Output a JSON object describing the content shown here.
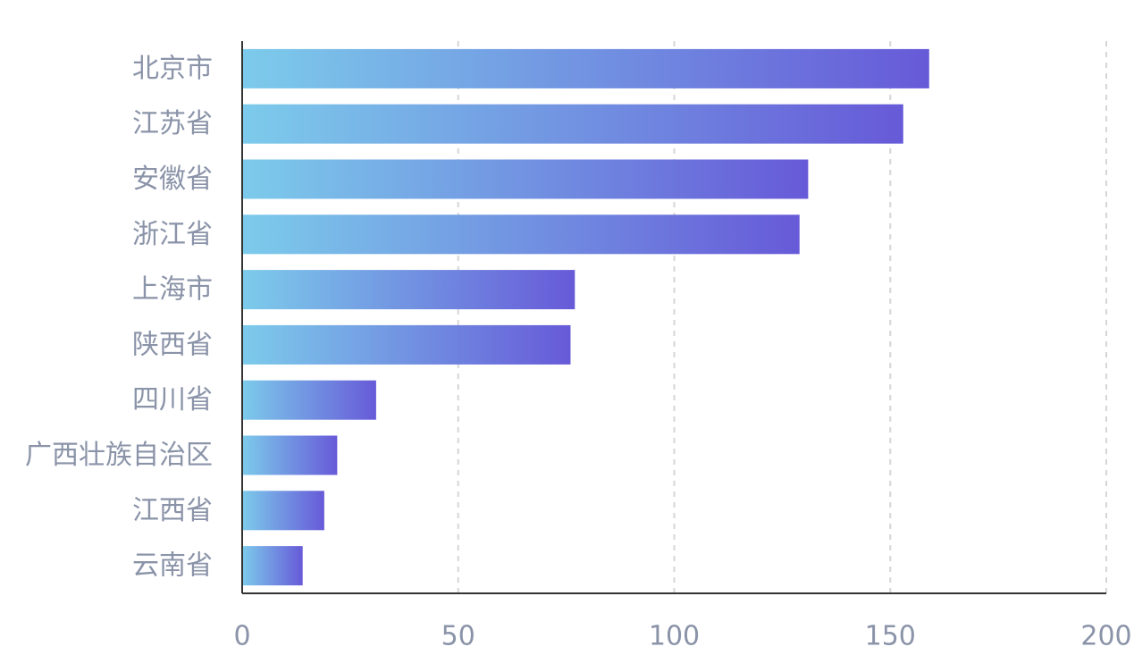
{
  "chart_data": {
    "type": "bar",
    "orientation": "horizontal",
    "categories": [
      "北京市",
      "江苏省",
      "安徽省",
      "浙江省",
      "上海市",
      "陕西省",
      "四川省",
      "广西壮族自治区",
      "江西省",
      "云南省"
    ],
    "values": [
      159,
      153,
      131,
      129,
      77,
      76,
      31,
      22,
      19,
      14
    ],
    "xlim": [
      0,
      200
    ],
    "xticks": [
      0,
      50,
      100,
      150,
      200
    ],
    "grid": "vertical-dashed",
    "title": "",
    "xlabel": "",
    "ylabel": "",
    "colors": {
      "bar_gradient_start": "#7ccbeb",
      "bar_gradient_end": "#675ad8",
      "grid": "#d6d6d6",
      "axis": "#333333",
      "label": "#8a93a8"
    }
  }
}
